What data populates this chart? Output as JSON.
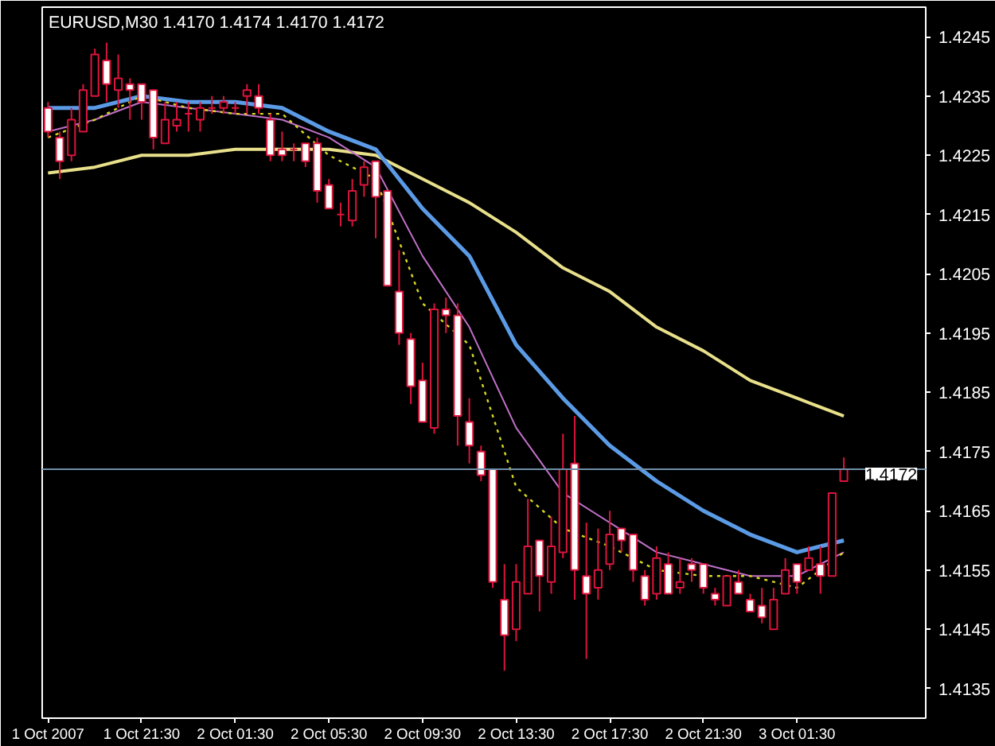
{
  "chart_data": {
    "type": "candlestick",
    "title": "EURUSD,M30  1.4170 1.4174 1.4170 1.4172",
    "x": [
      "2007-10-01T17:30",
      "2007-10-01T18:00",
      "2007-10-01T18:30",
      "2007-10-01T19:00",
      "2007-10-01T19:30",
      "2007-10-01T20:00",
      "2007-10-01T20:30",
      "2007-10-01T21:00",
      "2007-10-01T21:30",
      "2007-10-01T22:00",
      "2007-10-01T22:30",
      "2007-10-01T23:00",
      "2007-10-01T23:30",
      "2007-10-02T00:00",
      "2007-10-02T00:30",
      "2007-10-02T01:00",
      "2007-10-02T01:30",
      "2007-10-02T02:00",
      "2007-10-02T02:30",
      "2007-10-02T03:00",
      "2007-10-02T03:30",
      "2007-10-02T04:00",
      "2007-10-02T04:30",
      "2007-10-02T05:00",
      "2007-10-02T05:30",
      "2007-10-02T06:00",
      "2007-10-02T06:30",
      "2007-10-02T07:00",
      "2007-10-02T07:30",
      "2007-10-02T08:00",
      "2007-10-02T08:30",
      "2007-10-02T09:00",
      "2007-10-02T09:30",
      "2007-10-02T10:00",
      "2007-10-02T10:30",
      "2007-10-02T11:00",
      "2007-10-02T11:30",
      "2007-10-02T12:00",
      "2007-10-02T12:30",
      "2007-10-02T13:00",
      "2007-10-02T13:30",
      "2007-10-02T14:00",
      "2007-10-02T14:30",
      "2007-10-02T15:00",
      "2007-10-02T15:30",
      "2007-10-02T16:00",
      "2007-10-02T16:30",
      "2007-10-02T17:00",
      "2007-10-02T17:30",
      "2007-10-02T18:00",
      "2007-10-02T18:30",
      "2007-10-02T19:00",
      "2007-10-02T19:30",
      "2007-10-02T20:00",
      "2007-10-02T20:30",
      "2007-10-02T21:00",
      "2007-10-02T21:30",
      "2007-10-02T22:00",
      "2007-10-02T22:30",
      "2007-10-02T23:00",
      "2007-10-02T23:30",
      "2007-10-03T00:00",
      "2007-10-03T00:30",
      "2007-10-03T01:00",
      "2007-10-03T01:30",
      "2007-10-03T02:00",
      "2007-10-03T02:30",
      "2007-10-03T03:00",
      "2007-10-03T03:30"
    ],
    "ohlc": [
      [
        1.4233,
        1.4234,
        1.4228,
        1.4229
      ],
      [
        1.4228,
        1.4229,
        1.4221,
        1.4224
      ],
      [
        1.4225,
        1.4233,
        1.4224,
        1.4231
      ],
      [
        1.4229,
        1.4237,
        1.4229,
        1.4236
      ],
      [
        1.4235,
        1.4243,
        1.4235,
        1.4242
      ],
      [
        1.4241,
        1.4244,
        1.4234,
        1.4237
      ],
      [
        1.4236,
        1.4242,
        1.4233,
        1.4238
      ],
      [
        1.4237,
        1.4238,
        1.4231,
        1.4236
      ],
      [
        1.4237,
        1.4237,
        1.4231,
        1.4234
      ],
      [
        1.4236,
        1.4236,
        1.4226,
        1.4228
      ],
      [
        1.4227,
        1.4234,
        1.4227,
        1.4231
      ],
      [
        1.423,
        1.4234,
        1.4229,
        1.4231
      ],
      [
        1.4232,
        1.4234,
        1.4229,
        1.4232
      ],
      [
        1.4231,
        1.4234,
        1.4229,
        1.4233
      ],
      [
        1.4233,
        1.4235,
        1.4232,
        1.4233
      ],
      [
        1.4233,
        1.4235,
        1.4232,
        1.4234
      ],
      [
        1.4233,
        1.4234,
        1.4232,
        1.4233
      ],
      [
        1.4235,
        1.4237,
        1.4232,
        1.4236
      ],
      [
        1.4235,
        1.4237,
        1.4232,
        1.4233
      ],
      [
        1.4231,
        1.4232,
        1.4224,
        1.4225
      ],
      [
        1.4226,
        1.4229,
        1.4224,
        1.4225
      ],
      [
        1.4226,
        1.4227,
        1.4224,
        1.4226
      ],
      [
        1.4227,
        1.4227,
        1.4223,
        1.4224
      ],
      [
        1.4227,
        1.4228,
        1.4217,
        1.4219
      ],
      [
        1.422,
        1.4221,
        1.4216,
        1.4216
      ],
      [
        1.4215,
        1.4217,
        1.4213,
        1.4215
      ],
      [
        1.4214,
        1.4221,
        1.4213,
        1.4219
      ],
      [
        1.422,
        1.4224,
        1.4218,
        1.4223
      ],
      [
        1.4224,
        1.4224,
        1.4211,
        1.4218
      ],
      [
        1.4219,
        1.4219,
        1.4203,
        1.4203
      ],
      [
        1.4202,
        1.4209,
        1.4193,
        1.4195
      ],
      [
        1.4194,
        1.4195,
        1.4183,
        1.4186
      ],
      [
        1.4187,
        1.419,
        1.418,
        1.418
      ],
      [
        1.4179,
        1.42,
        1.4178,
        1.4199
      ],
      [
        1.4199,
        1.4201,
        1.4195,
        1.4198
      ],
      [
        1.4198,
        1.42,
        1.4176,
        1.4181
      ],
      [
        1.418,
        1.4184,
        1.4173,
        1.4176
      ],
      [
        1.4175,
        1.4176,
        1.417,
        1.4171
      ],
      [
        1.4172,
        1.4172,
        1.4152,
        1.4153
      ],
      [
        1.415,
        1.4156,
        1.4138,
        1.4144
      ],
      [
        1.4145,
        1.4156,
        1.4143,
        1.4153
      ],
      [
        1.4151,
        1.4167,
        1.4151,
        1.4159
      ],
      [
        1.416,
        1.416,
        1.4148,
        1.4154
      ],
      [
        1.4153,
        1.4164,
        1.4151,
        1.4159
      ],
      [
        1.4158,
        1.4178,
        1.4157,
        1.4172
      ],
      [
        1.4173,
        1.4181,
        1.415,
        1.4155
      ],
      [
        1.4154,
        1.4163,
        1.414,
        1.4151
      ],
      [
        1.4152,
        1.4162,
        1.415,
        1.4155
      ],
      [
        1.4156,
        1.4165,
        1.4155,
        1.4161
      ],
      [
        1.4162,
        1.4162,
        1.4158,
        1.416
      ],
      [
        1.4161,
        1.4161,
        1.4153,
        1.4155
      ],
      [
        1.4154,
        1.4155,
        1.4149,
        1.415
      ],
      [
        1.4151,
        1.4159,
        1.415,
        1.4157
      ],
      [
        1.4156,
        1.4158,
        1.4151,
        1.4151
      ],
      [
        1.4152,
        1.4157,
        1.4151,
        1.4153
      ],
      [
        1.4156,
        1.4157,
        1.4153,
        1.4155
      ],
      [
        1.4156,
        1.4156,
        1.4151,
        1.4152
      ],
      [
        1.4151,
        1.4152,
        1.4149,
        1.415
      ],
      [
        1.4149,
        1.4154,
        1.4149,
        1.4154
      ],
      [
        1.4153,
        1.4155,
        1.4151,
        1.4151
      ],
      [
        1.415,
        1.4151,
        1.4148,
        1.4148
      ],
      [
        1.4149,
        1.4152,
        1.4146,
        1.4147
      ],
      [
        1.4145,
        1.4152,
        1.4145,
        1.415
      ],
      [
        1.4151,
        1.4157,
        1.4151,
        1.4155
      ],
      [
        1.4156,
        1.4156,
        1.4151,
        1.4153
      ],
      [
        1.4155,
        1.4159,
        1.4155,
        1.4157
      ],
      [
        1.4156,
        1.4159,
        1.4151,
        1.4154
      ],
      [
        1.4154,
        1.4168,
        1.4154,
        1.4168
      ],
      [
        1.417,
        1.4174,
        1.417,
        1.4172
      ]
    ],
    "color": "#dc143c",
    "series": [
      {
        "type": "line",
        "color": "#e8e08a",
        "line_style": "solid",
        "x": [
          "2007-10-01T17:30",
          "2007-10-01T19:30",
          "2007-10-01T21:30",
          "2007-10-01T23:30",
          "2007-10-02T01:30",
          "2007-10-02T03:30",
          "2007-10-02T05:30",
          "2007-10-02T07:30",
          "2007-10-02T09:30",
          "2007-10-02T11:30",
          "2007-10-02T13:30",
          "2007-10-02T15:30",
          "2007-10-02T17:30",
          "2007-10-02T19:30",
          "2007-10-02T21:30",
          "2007-10-02T23:30",
          "2007-10-03T01:30",
          "2007-10-03T03:30"
        ],
        "values": [
          1.4222,
          1.4223,
          1.4225,
          1.4225,
          1.4226,
          1.4226,
          1.4226,
          1.4225,
          1.4221,
          1.4217,
          1.4212,
          1.4206,
          1.4202,
          1.4196,
          1.4192,
          1.4187,
          1.4184,
          1.4181
        ]
      },
      {
        "type": "line",
        "color": "#5b9be6",
        "line_style": "solid",
        "x": [
          "2007-10-01T17:30",
          "2007-10-01T19:30",
          "2007-10-01T21:30",
          "2007-10-01T23:30",
          "2007-10-02T01:30",
          "2007-10-02T03:30",
          "2007-10-02T05:30",
          "2007-10-02T07:30",
          "2007-10-02T09:30",
          "2007-10-02T11:30",
          "2007-10-02T13:30",
          "2007-10-02T15:30",
          "2007-10-02T17:30",
          "2007-10-02T19:30",
          "2007-10-02T21:30",
          "2007-10-02T23:30",
          "2007-10-03T01:30",
          "2007-10-03T03:30"
        ],
        "values": [
          1.4233,
          1.4233,
          1.4235,
          1.4234,
          1.4234,
          1.4233,
          1.4229,
          1.4226,
          1.4216,
          1.4208,
          1.4193,
          1.4184,
          1.4176,
          1.417,
          1.4165,
          1.4161,
          1.4158,
          1.416
        ]
      },
      {
        "type": "line",
        "color": "#c070c8",
        "line_style": "solid",
        "x": [
          "2007-10-01T17:30",
          "2007-10-01T19:30",
          "2007-10-01T21:30",
          "2007-10-01T23:30",
          "2007-10-02T01:30",
          "2007-10-02T03:30",
          "2007-10-02T05:30",
          "2007-10-02T07:30",
          "2007-10-02T09:30",
          "2007-10-02T11:30",
          "2007-10-02T13:30",
          "2007-10-02T15:30",
          "2007-10-02T17:30",
          "2007-10-02T19:30",
          "2007-10-02T21:30",
          "2007-10-02T23:30",
          "2007-10-03T01:30",
          "2007-10-03T03:30"
        ],
        "values": [
          1.4229,
          1.4231,
          1.4234,
          1.4233,
          1.4232,
          1.4231,
          1.4228,
          1.4223,
          1.4208,
          1.4196,
          1.4179,
          1.4168,
          1.4163,
          1.4158,
          1.4156,
          1.4154,
          1.4154,
          1.4158
        ]
      },
      {
        "type": "line",
        "color": "#d8d820",
        "line_style": "dotted",
        "x": [
          "2007-10-01T17:30",
          "2007-10-01T19:30",
          "2007-10-01T21:30",
          "2007-10-01T23:30",
          "2007-10-02T01:30",
          "2007-10-02T03:30",
          "2007-10-02T05:30",
          "2007-10-02T07:30",
          "2007-10-02T09:30",
          "2007-10-02T11:30",
          "2007-10-02T13:30",
          "2007-10-02T15:30",
          "2007-10-02T17:30",
          "2007-10-02T19:30",
          "2007-10-02T21:30",
          "2007-10-02T23:30",
          "2007-10-03T01:30",
          "2007-10-03T03:30"
        ],
        "values": [
          1.4228,
          1.4231,
          1.4235,
          1.4233,
          1.4232,
          1.4232,
          1.4225,
          1.4221,
          1.42,
          1.4193,
          1.4169,
          1.4162,
          1.4159,
          1.4155,
          1.4154,
          1.4154,
          1.4152,
          1.4158
        ]
      }
    ],
    "xlim": [
      "2007-10-01T17:15",
      "2007-10-03T07:00"
    ],
    "xticks": [
      {
        "value": "2007-10-01T17:30",
        "label": "1 Oct 2007"
      },
      {
        "value": "2007-10-01T21:30",
        "label": "1 Oct 21:30"
      },
      {
        "value": "2007-10-02T01:30",
        "label": "2 Oct 01:30"
      },
      {
        "value": "2007-10-02T05:30",
        "label": "2 Oct 05:30"
      },
      {
        "value": "2007-10-02T09:30",
        "label": "2 Oct 09:30"
      },
      {
        "value": "2007-10-02T13:30",
        "label": "2 Oct 13:30"
      },
      {
        "value": "2007-10-02T17:30",
        "label": "2 Oct 17:30"
      },
      {
        "value": "2007-10-02T21:30",
        "label": "2 Oct 21:30"
      },
      {
        "value": "2007-10-03T01:30",
        "label": "3 Oct 01:30"
      }
    ],
    "ylim": [
      1.413,
      1.425
    ],
    "yticks": [
      1.4135,
      1.4145,
      1.4155,
      1.4165,
      1.4175,
      1.4185,
      1.4195,
      1.4205,
      1.4215,
      1.4225,
      1.4235,
      1.4245
    ],
    "ref_lines": [
      {
        "axis": "y",
        "value": 1.4172,
        "label": "1.4172",
        "color": "#6f8fa8"
      }
    ],
    "grid": false
  }
}
